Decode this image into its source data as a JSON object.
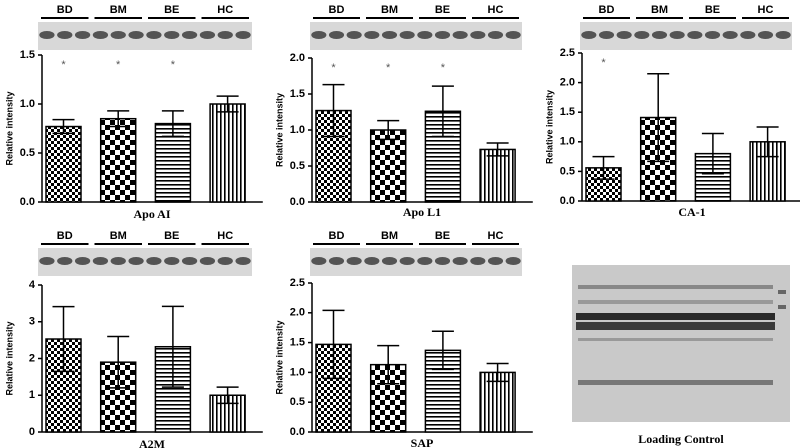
{
  "chart_data": [
    {
      "type": "bar",
      "xlabel": "Apo AI",
      "ylabel": "Relative intensity",
      "categories": [
        "BD",
        "BM",
        "BE",
        "HC"
      ],
      "values": [
        0.77,
        0.85,
        0.8,
        1.0
      ],
      "errors": [
        0.07,
        0.08,
        0.13,
        0.08
      ],
      "annotations": [
        "*",
        "*",
        "*",
        null
      ],
      "ylim": [
        0,
        1.5
      ],
      "yticks": [
        {
          "value": 0,
          "label": "0.0"
        },
        0.5,
        {
          "value": 1,
          "label": "1.0"
        },
        1.5
      ]
    },
    {
      "type": "bar",
      "xlabel": "Apo L1",
      "ylabel": "Relative intensity",
      "categories": [
        "BD",
        "BM",
        "BE",
        "HC"
      ],
      "values": [
        1.27,
        1.0,
        1.26,
        0.73
      ],
      "errors": [
        0.36,
        0.13,
        0.35,
        0.09
      ],
      "annotations": [
        "*",
        "*",
        "*",
        null
      ],
      "ylim": [
        0,
        2
      ],
      "yticks": [
        {
          "value": 0,
          "label": "0.0"
        },
        0.5,
        {
          "value": 1,
          "label": "1.0"
        },
        1.5,
        {
          "value": 2,
          "label": "2.0"
        }
      ]
    },
    {
      "type": "bar",
      "xlabel": "CA-1",
      "ylabel": "Relative intensity",
      "categories": [
        "BD",
        "BM",
        "BE",
        "HC"
      ],
      "values": [
        0.56,
        1.41,
        0.8,
        1.0
      ],
      "errors": [
        0.19,
        0.74,
        0.34,
        0.25
      ],
      "annotations": [
        "*",
        null,
        null,
        null
      ],
      "ylim": [
        0,
        2.5
      ],
      "yticks": [
        {
          "value": 0,
          "label": "0.0"
        },
        0.5,
        {
          "value": 1,
          "label": "1.0"
        },
        1.5,
        {
          "value": 2,
          "label": "2.0"
        },
        2.5
      ]
    },
    {
      "type": "bar",
      "xlabel": "A2M",
      "ylabel": "Relative intensity",
      "categories": [
        "BD",
        "BM",
        "BE",
        "HC"
      ],
      "values": [
        2.53,
        1.9,
        2.32,
        1.0
      ],
      "errors": [
        0.88,
        0.7,
        1.1,
        0.22
      ],
      "annotations": [
        null,
        null,
        null,
        null
      ],
      "ylim": [
        0,
        4
      ],
      "yticks": [
        0,
        1,
        2,
        3,
        4
      ]
    },
    {
      "type": "bar",
      "xlabel": "SAP",
      "ylabel": "Relative intensity",
      "categories": [
        "BD",
        "BM",
        "BE",
        "HC"
      ],
      "values": [
        1.47,
        1.13,
        1.37,
        1.0
      ],
      "errors": [
        0.57,
        0.32,
        0.32,
        0.15
      ],
      "annotations": [
        null,
        null,
        null,
        null
      ],
      "ylim": [
        0,
        2.5
      ],
      "yticks": [
        {
          "value": 0,
          "label": "0.0"
        },
        0.5,
        {
          "value": 1,
          "label": "1.0"
        },
        1.5,
        {
          "value": 2,
          "label": "2.0"
        },
        2.5
      ]
    }
  ],
  "loading_control": {
    "label": "Loading Control"
  }
}
